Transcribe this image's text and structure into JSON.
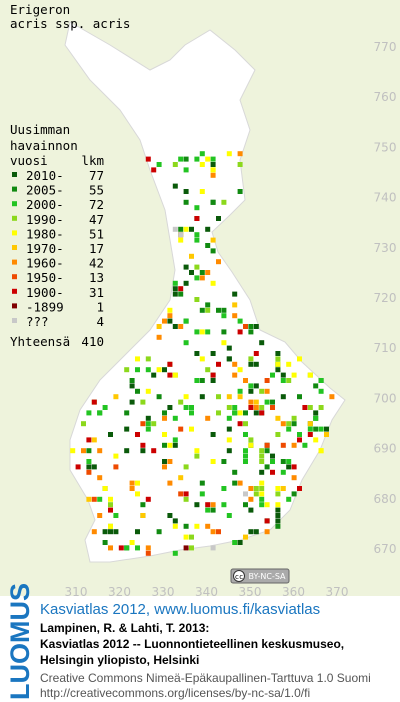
{
  "title": [
    "Erigeron",
    "acris ssp. acris"
  ],
  "legend": {
    "heading": [
      "Uusimman",
      "havainnon"
    ],
    "year_header": "vuosi",
    "count_header": "lkm",
    "rows": [
      {
        "label": "2010-",
        "count": 77,
        "color": "#0a5a0a"
      },
      {
        "label": "2005-",
        "count": 55,
        "color": "#118a11"
      },
      {
        "label": "2000-",
        "count": 72,
        "color": "#22c422"
      },
      {
        "label": "1990-",
        "count": 47,
        "color": "#8cd81c"
      },
      {
        "label": "1980-",
        "count": 51,
        "color": "#ffff00"
      },
      {
        "label": "1970-",
        "count": 17,
        "color": "#ffc800"
      },
      {
        "label": "1960-",
        "count": 42,
        "color": "#ff8a00"
      },
      {
        "label": "1950-",
        "count": 13,
        "color": "#ee4a00"
      },
      {
        "label": "1900-",
        "count": 31,
        "color": "#cc0000"
      },
      {
        "label": "-1899",
        "count": 1,
        "color": "#800000"
      },
      {
        "label": "???",
        "count": 4,
        "color": "#c8c8c8"
      }
    ],
    "total_label": "Yhteensä",
    "total": 410
  },
  "x_ticks": [
    310,
    320,
    330,
    340,
    350,
    360,
    370
  ],
  "y_ticks": [
    670,
    680,
    690,
    700,
    710,
    720,
    730,
    740,
    750,
    760,
    770
  ],
  "license_badge": "BY-NC-SA",
  "logo": "LUOMUS",
  "credits": {
    "link": "Kasviatlas 2012, www.luomus.fi/kasviatlas",
    "lines": [
      "Lampinen, R. & Lahti, T. 2013:",
      "Kasviatlas 2012 -- Luonnontieteellinen keskusmuseo,",
      "Helsingin yliopisto, Helsinki"
    ],
    "license": [
      "Creative Commons Nimeä-Epäkaupallinen-Tarttuva 1.0 Suomi",
      "http://creativecommons.org/licenses/by-nc-sa/1.0/fi"
    ]
  }
}
